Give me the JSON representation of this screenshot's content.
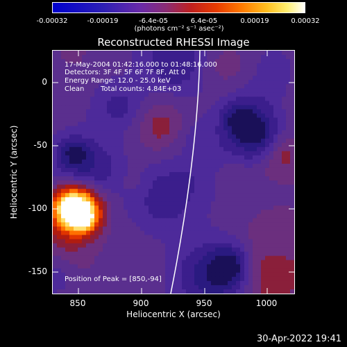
{
  "colorbar": {
    "ticks": [
      "-0.00032",
      "-0.00019",
      "-6.4e-05",
      "6.4e-05",
      "0.00019",
      "0.00032"
    ],
    "unit_text": "(photons cm⁻² s⁻¹ asec⁻²)"
  },
  "plot": {
    "title": "Reconstructed RHESSI Image",
    "annotations": {
      "time": "17-May-2004 01:42:16.000 to 01:48:16.000",
      "detectors": "Detectors: 3F 4F 5F 6F 7F 8F, Att 0",
      "energy": "Energy Range: 12.0 - 25.0 keV",
      "algorithm": "Clean",
      "counts": "Total counts: 4.84E+03",
      "peak": "Position of Peak = [850,-94]"
    },
    "xlabel": "Heliocentric X (arcsec)",
    "ylabel": "Heliocentric Y (arcsec)",
    "xticks": [
      "850",
      "900",
      "950",
      "1000"
    ],
    "yticks": [
      "0",
      "-50",
      "-100",
      "-150"
    ]
  },
  "footer": {
    "timestamp": "30-Apr-2022 19:41"
  },
  "colors": {
    "background": "#000000",
    "axis": "#ffffff",
    "limb": "#ffffff"
  },
  "chart_data": {
    "type": "heatmap",
    "title": "Reconstructed RHESSI Image",
    "xlabel": "Heliocentric X (arcsec)",
    "ylabel": "Heliocentric Y (arcsec)",
    "xlim": [
      830,
      1022
    ],
    "ylim": [
      -169,
      23
    ],
    "colorbar_range": [
      -0.00032,
      0.00032
    ],
    "peak": [
      850,
      -94
    ]
  }
}
